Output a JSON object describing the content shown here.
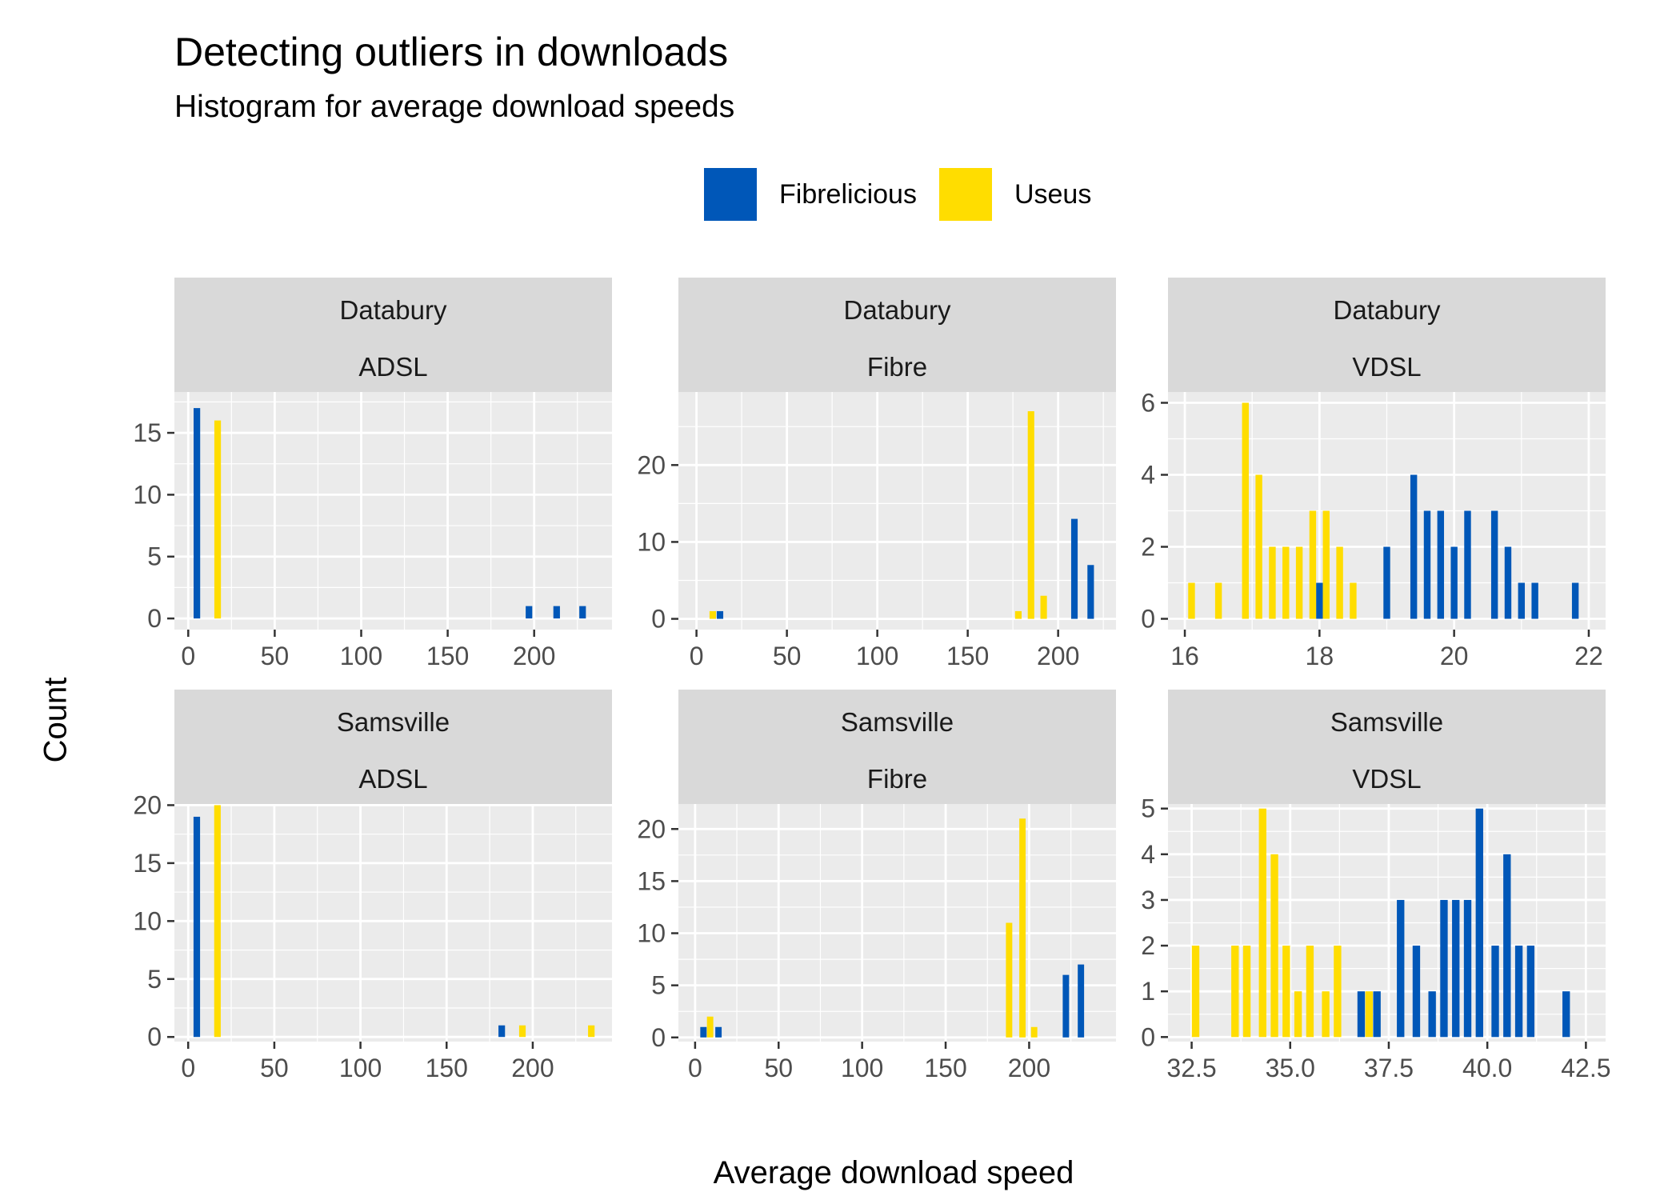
{
  "chart_data": {
    "type": "bar",
    "title": "Detecting outliers in downloads",
    "subtitle": "Histogram for average download speeds",
    "xlabel": "Average download speed",
    "ylabel": "Count",
    "legend": {
      "placement": "top",
      "entries": [
        {
          "name": "Fibrelicious",
          "color": "#0057B8"
        },
        {
          "name": "Useus",
          "color": "#FFDD00"
        }
      ]
    },
    "grid": true,
    "panel_background": "#EBEBEB",
    "strip_background": "#D9D9D9",
    "facets": [
      {
        "town": "Databury",
        "technology": "ADSL",
        "xlim": [
          -8,
          245
        ],
        "ylim": [
          -0.9,
          18.3
        ],
        "xticks": [
          0,
          50,
          100,
          150,
          200
        ],
        "xtick_labels": [
          "0",
          "50",
          "100",
          "150",
          "200"
        ],
        "yticks": [
          0,
          5,
          10,
          15
        ],
        "ytick_labels": [
          "0",
          "5",
          "10",
          "15"
        ],
        "bar_width": 3.8,
        "series": [
          {
            "name": "Fibrelicious",
            "points": [
              [
                5,
                17
              ],
              [
                197,
                1
              ],
              [
                213,
                1
              ],
              [
                228,
                1
              ]
            ]
          },
          {
            "name": "Useus",
            "points": [
              [
                17,
                16
              ]
            ]
          }
        ]
      },
      {
        "town": "Databury",
        "technology": "Fibre",
        "xlim": [
          -10,
          232
        ],
        "ylim": [
          -1.4,
          29.5
        ],
        "xticks": [
          0,
          50,
          100,
          150,
          200
        ],
        "xtick_labels": [
          "0",
          "50",
          "100",
          "150",
          "200"
        ],
        "yticks": [
          0,
          10,
          20
        ],
        "ytick_labels": [
          "0",
          "10",
          "20"
        ],
        "bar_width": 3.6,
        "series": [
          {
            "name": "Fibrelicious",
            "points": [
              [
                13,
                1
              ],
              [
                209,
                13
              ],
              [
                218,
                7
              ]
            ]
          },
          {
            "name": "Useus",
            "points": [
              [
                9,
                1
              ],
              [
                178,
                1
              ],
              [
                185,
                27
              ],
              [
                192,
                3
              ]
            ]
          }
        ]
      },
      {
        "town": "Databury",
        "technology": "VDSL",
        "xlim": [
          15.75,
          22.25
        ],
        "ylim": [
          -0.3,
          6.3
        ],
        "xticks": [
          16,
          18,
          20,
          22
        ],
        "xtick_labels": [
          "16",
          "18",
          "20",
          "22"
        ],
        "bar_width": 0.1,
        "yticks": [
          0,
          2,
          4,
          6
        ],
        "ytick_labels": [
          "0",
          "2",
          "4",
          "6"
        ],
        "series": [
          {
            "name": "Fibrelicious",
            "points": [
              [
                18.0,
                1
              ],
              [
                19.0,
                2
              ],
              [
                19.4,
                4
              ],
              [
                19.6,
                3
              ],
              [
                19.8,
                3
              ],
              [
                20.0,
                2
              ],
              [
                20.2,
                3
              ],
              [
                20.6,
                3
              ],
              [
                20.8,
                2
              ],
              [
                21.0,
                1
              ],
              [
                21.2,
                1
              ],
              [
                21.8,
                1
              ]
            ]
          },
          {
            "name": "Useus",
            "points": [
              [
                16.1,
                1
              ],
              [
                16.5,
                1
              ],
              [
                16.9,
                6
              ],
              [
                17.1,
                4
              ],
              [
                17.3,
                2
              ],
              [
                17.5,
                2
              ],
              [
                17.7,
                2
              ],
              [
                17.9,
                3
              ],
              [
                18.1,
                3
              ],
              [
                18.3,
                2
              ],
              [
                18.5,
                1
              ]
            ]
          }
        ]
      },
      {
        "town": "Samsville",
        "technology": "ADSL",
        "xlim": [
          -8,
          246
        ],
        "ylim": [
          -0.4,
          20.1
        ],
        "xticks": [
          0,
          50,
          100,
          150,
          200
        ],
        "xtick_labels": [
          "0",
          "50",
          "100",
          "150",
          "200"
        ],
        "yticks": [
          0,
          5,
          10,
          15,
          20
        ],
        "ytick_labels": [
          "0",
          "5",
          "10",
          "15",
          "20"
        ],
        "bar_width": 3.8,
        "series": [
          {
            "name": "Fibrelicious",
            "points": [
              [
                5,
                19
              ],
              [
                182,
                1
              ]
            ]
          },
          {
            "name": "Useus",
            "points": [
              [
                17,
                20
              ],
              [
                194,
                1
              ],
              [
                234,
                1
              ]
            ]
          }
        ]
      },
      {
        "town": "Samsville",
        "technology": "Fibre",
        "xlim": [
          -10,
          252
        ],
        "ylim": [
          -0.4,
          22.4
        ],
        "xticks": [
          0,
          50,
          100,
          150,
          200
        ],
        "xtick_labels": [
          "0",
          "50",
          "100",
          "150",
          "200"
        ],
        "yticks": [
          0,
          5,
          10,
          15,
          20
        ],
        "ytick_labels": [
          "0",
          "5",
          "10",
          "15",
          "20"
        ],
        "bar_width": 3.8,
        "series": [
          {
            "name": "Fibrelicious",
            "points": [
              [
                5,
                1
              ],
              [
                14,
                1
              ],
              [
                222,
                6
              ],
              [
                231,
                7
              ]
            ]
          },
          {
            "name": "Useus",
            "points": [
              [
                9,
                2
              ],
              [
                188,
                11
              ],
              [
                196,
                21
              ],
              [
                203,
                1
              ]
            ]
          }
        ]
      },
      {
        "town": "Samsville",
        "technology": "VDSL",
        "xlim": [
          31.9,
          43.0
        ],
        "ylim": [
          -0.1,
          5.1
        ],
        "xticks": [
          32.5,
          35.0,
          37.5,
          40.0,
          42.5
        ],
        "xtick_labels": [
          "32.5",
          "35.0",
          "37.5",
          "40.0",
          "42.5"
        ],
        "yticks": [
          0,
          1,
          2,
          3,
          4,
          5
        ],
        "ytick_labels": [
          "0",
          "1",
          "2",
          "3",
          "4",
          "5"
        ],
        "bar_width": 0.19,
        "series": [
          {
            "name": "Fibrelicious",
            "points": [
              [
                36.8,
                1
              ],
              [
                37.2,
                1
              ],
              [
                37.8,
                3
              ],
              [
                38.2,
                2
              ],
              [
                38.6,
                1
              ],
              [
                38.9,
                3
              ],
              [
                39.2,
                3
              ],
              [
                39.5,
                3
              ],
              [
                39.8,
                5
              ],
              [
                40.2,
                2
              ],
              [
                40.5,
                4
              ],
              [
                40.8,
                2
              ],
              [
                41.1,
                2
              ],
              [
                42.0,
                1
              ]
            ]
          },
          {
            "name": "Useus",
            "points": [
              [
                32.6,
                2
              ],
              [
                33.6,
                2
              ],
              [
                33.9,
                2
              ],
              [
                34.3,
                5
              ],
              [
                34.6,
                4
              ],
              [
                34.9,
                2
              ],
              [
                35.2,
                1
              ],
              [
                35.5,
                2
              ],
              [
                35.9,
                1
              ],
              [
                36.2,
                2
              ],
              [
                37.0,
                1
              ]
            ]
          }
        ]
      }
    ]
  }
}
